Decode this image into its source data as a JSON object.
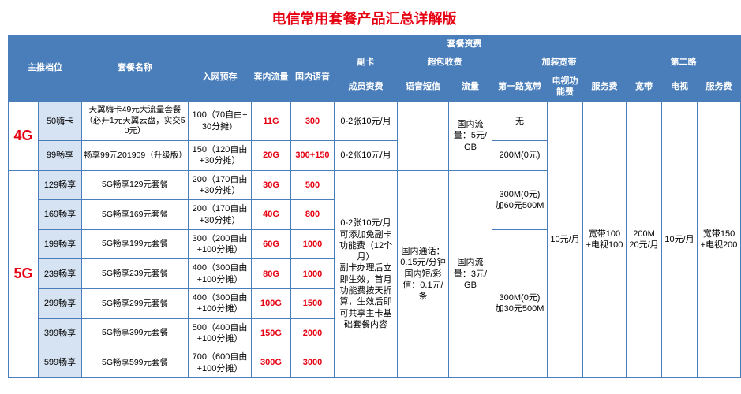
{
  "title": "电信常用套餐产品汇总详解版",
  "colors": {
    "header_bg": "#4a7ebb",
    "header_fg": "#ffffff",
    "border": "#4a7ebb",
    "tier_bg": "#d6e3f3",
    "accent_red": "#e60012",
    "bg": "#ffffff"
  },
  "headers": {
    "main_level": "主推档位",
    "plan_name": "套餐名称",
    "plan_fee": "套餐资费",
    "prepay": "入网预存",
    "data": "套内流量",
    "voice": "国内语音",
    "sub_card": "副卡",
    "overage": "超包收费",
    "add_bb": "加装宽带",
    "second_line": "第二路",
    "member_fee": "成员资费",
    "voice_sms": "语音短信",
    "traffic": "流量",
    "first_bb": "第一路宽带",
    "tv_fee": "电视功能费",
    "service_fee": "服务费",
    "bb2": "宽带",
    "tv2": "电视",
    "service_fee2": "服务费"
  },
  "categories": {
    "g4": "4G",
    "g5": "5G"
  },
  "rows_4g": [
    {
      "tier": "50嗨卡",
      "name": "天翼嗨卡49元大流量套餐（必开1元天翼云盘，实交50元）",
      "prepay": "100（70自由+30分摊）",
      "data": "11G",
      "voice": "300",
      "member": "0-2张10元/月"
    },
    {
      "tier": "99畅享",
      "name": "畅享99元201909（升级版）",
      "prepay": "150（120自由+30分摊）",
      "data": "20G",
      "voice": "300+150",
      "member": "0-2张10元/月"
    }
  ],
  "rows_5g": [
    {
      "tier": "129畅享",
      "name": "5G畅享129元套餐",
      "prepay": "200（170自由+30分摊）",
      "data": "30G",
      "voice": "500"
    },
    {
      "tier": "169畅享",
      "name": "5G畅享169元套餐",
      "prepay": "200（170自由+30分摊）",
      "data": "40G",
      "voice": "800"
    },
    {
      "tier": "199畅享",
      "name": "5G畅享199元套餐",
      "prepay": "300（200自由+100分摊）",
      "data": "60G",
      "voice": "1000"
    },
    {
      "tier": "239畅享",
      "name": "5G畅享239元套餐",
      "prepay": "400（300自由+100分摊）",
      "data": "80G",
      "voice": "1000"
    },
    {
      "tier": "299畅享",
      "name": "5G畅享299元套餐",
      "prepay": "400（300自由+100分摊）",
      "data": "100G",
      "voice": "1500"
    },
    {
      "tier": "399畅享",
      "name": "5G畅享399元套餐",
      "prepay": "500（400自由+100分摊）",
      "data": "150G",
      "voice": "2000"
    },
    {
      "tier": "599畅享",
      "name": "5G畅享599元套餐",
      "prepay": "700（600自由+100分摊）",
      "data": "300G",
      "voice": "3000"
    }
  ],
  "shared": {
    "voice_sms_4g": "",
    "traffic_4g": "国内流量：5元/GB",
    "first_bb_4g_a": "无",
    "first_bb_4g_b": "200M(0元)",
    "member_5g": "0-2张10元/月\n可添加免副卡功能费（12个月）\n副卡办理后立即生效，首月功能费按天折算，生效后即可共享主卡基础套餐内容",
    "voice_sms_5g": "国内通话：0.15元/分钟\n国内短/彩信：0.1元/条",
    "traffic_5g": "国内流量：3元/GB",
    "first_bb_5g_a": "300M(0元)\n加60元500M",
    "first_bb_5g_b": "300M(0元)\n加30元500M",
    "tv_fee": "10元/月",
    "service_fee": "宽带100+电视100",
    "bb2": "200M\n20元/月",
    "tv2": "10元/月",
    "service_fee2": "宽带150+电视200"
  }
}
